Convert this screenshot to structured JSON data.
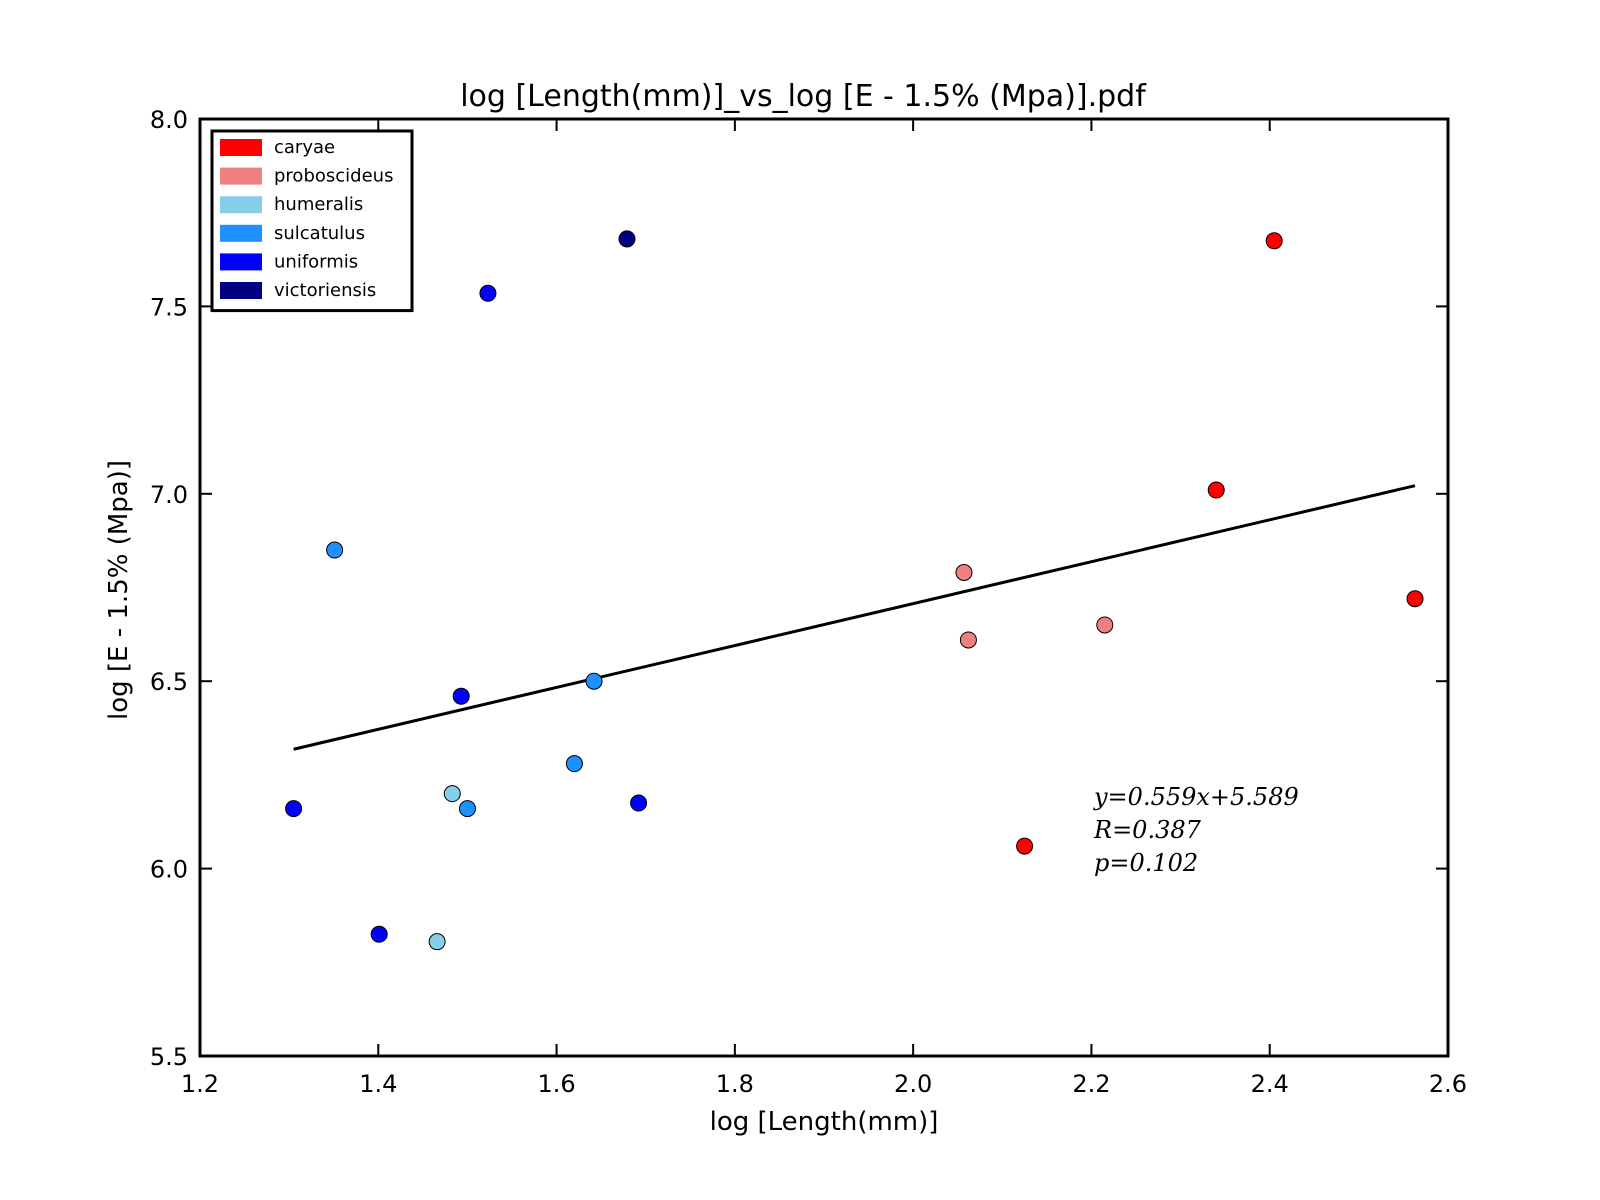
{
  "chart_data": {
    "type": "scatter",
    "title": "log [Length(mm)]_vs_log [E - 1.5% (Mpa)].pdf",
    "xlabel": "log [Length(mm)]",
    "ylabel": "log [E - 1.5% (Mpa)]",
    "xlim": [
      1.2,
      2.6
    ],
    "ylim": [
      5.5,
      8.0
    ],
    "xticks": [
      "1.2",
      "1.4",
      "1.6",
      "1.8",
      "2.0",
      "2.2",
      "2.4",
      "2.6"
    ],
    "yticks": [
      "5.5",
      "6.0",
      "6.5",
      "7.0",
      "7.5",
      "8.0"
    ],
    "grid": false,
    "legend_position": "top-left",
    "series": [
      {
        "name": "caryae",
        "color": "#ff0000",
        "points": [
          [
            2.34,
            7.01
          ],
          [
            2.405,
            7.675
          ],
          [
            2.563,
            6.72
          ],
          [
            2.125,
            6.06
          ]
        ]
      },
      {
        "name": "proboscideus",
        "color": "#f08080",
        "points": [
          [
            2.057,
            6.79
          ],
          [
            2.062,
            6.61
          ],
          [
            2.215,
            6.65
          ]
        ]
      },
      {
        "name": "humeralis",
        "color": "#87ceeb",
        "points": [
          [
            1.483,
            6.2
          ],
          [
            1.466,
            5.805
          ]
        ]
      },
      {
        "name": "sulcatulus",
        "color": "#1e90ff",
        "points": [
          [
            1.351,
            6.85
          ],
          [
            1.642,
            6.5
          ],
          [
            1.62,
            6.28
          ],
          [
            1.5,
            6.16
          ]
        ]
      },
      {
        "name": "uniformis",
        "color": "#0000ff",
        "points": [
          [
            1.523,
            7.535
          ],
          [
            1.493,
            6.46
          ],
          [
            1.305,
            6.16
          ],
          [
            1.401,
            5.825
          ],
          [
            1.692,
            6.175
          ]
        ]
      },
      {
        "name": "victoriensis",
        "color": "#000080",
        "points": [
          [
            1.679,
            7.68
          ]
        ]
      }
    ],
    "fit_line": {
      "slope": 0.559,
      "intercept": 5.589,
      "x_range": [
        1.305,
        2.563
      ],
      "color": "#000000"
    },
    "annotations": [
      "y=0.559x+5.589",
      "R=0.387",
      "p=0.102"
    ]
  }
}
